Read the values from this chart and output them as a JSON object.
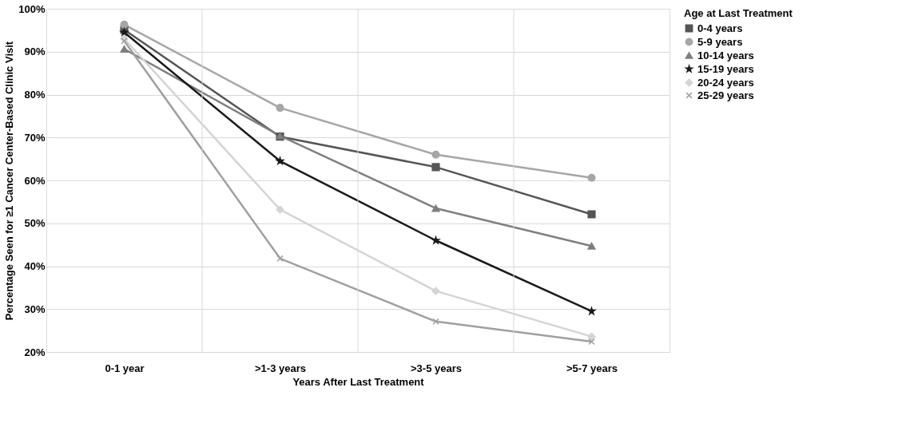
{
  "chart_data": {
    "type": "line",
    "xlabel": "Years After Last Treatment",
    "ylabel": "Percentage Seen for ≥1 Cancer Center-Based Clinic Visit",
    "legend_title": "Age at Last Treatment",
    "categories": [
      "0-1 year",
      ">1-3 years",
      ">3-5 years",
      ">5-7 years"
    ],
    "series": [
      {
        "name": "0-4 years",
        "color": "#555555",
        "marker": "square",
        "values": [
          95.1,
          70.2,
          63.1,
          52.1
        ]
      },
      {
        "name": "5-9 years",
        "color": "#a6a6a6",
        "marker": "circle",
        "values": [
          96.3,
          76.9,
          66.0,
          60.6
        ]
      },
      {
        "name": "10-14 years",
        "color": "#7f7f7f",
        "marker": "triangle",
        "values": [
          90.6,
          70.4,
          53.5,
          44.7
        ]
      },
      {
        "name": "15-19 years",
        "color": "#1a1a1a",
        "marker": "star",
        "values": [
          94.5,
          64.5,
          46.0,
          29.5
        ]
      },
      {
        "name": "20-24 years",
        "color": "#d4d4d4",
        "marker": "diamond",
        "values": [
          93.0,
          53.2,
          34.2,
          23.6
        ]
      },
      {
        "name": "25-29 years",
        "color": "#a0a0a0",
        "marker": "cross",
        "values": [
          92.5,
          41.8,
          27.1,
          22.4
        ]
      }
    ],
    "ylim": [
      20,
      100
    ],
    "yticks": [
      {
        "value": 20,
        "label": "20%"
      },
      {
        "value": 30,
        "label": "30%"
      },
      {
        "value": 40,
        "label": "40%"
      },
      {
        "value": 50,
        "label": "50%"
      },
      {
        "value": 60,
        "label": "60%"
      },
      {
        "value": 70,
        "label": "70%"
      },
      {
        "value": 80,
        "label": "80%"
      },
      {
        "value": 90,
        "label": "90%"
      },
      {
        "value": 100,
        "label": "100%"
      }
    ],
    "grid": true,
    "legend": "right",
    "line_style": "solid"
  }
}
